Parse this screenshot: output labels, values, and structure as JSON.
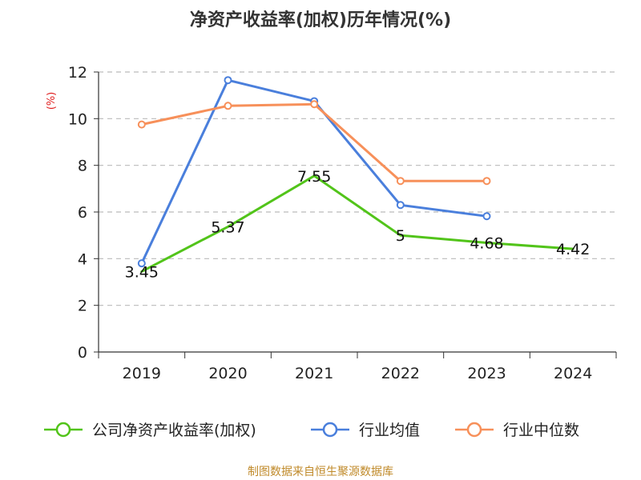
{
  "source_text": "制图数据来自恒生聚源数据库",
  "chart_data": {
    "type": "line",
    "title": "净资产收益率(加权)历年情况(%)",
    "ylabel": "(%)",
    "categories": [
      "2019",
      "2020",
      "2021",
      "2022",
      "2023",
      "2024"
    ],
    "ylim": [
      0,
      12
    ],
    "yticks": [
      0,
      2,
      4,
      6,
      8,
      10,
      12
    ],
    "grid": true,
    "legend_position": "bottom",
    "series": [
      {
        "name": "公司净资产收益率(加权)",
        "color": "#52c41a",
        "values": [
          3.45,
          5.37,
          7.55,
          5,
          4.68,
          4.42
        ],
        "labels": [
          "3.45",
          "5.37",
          "7.55",
          "5",
          "4.68",
          "4.42"
        ],
        "marker": "none"
      },
      {
        "name": "行业均值",
        "color": "#4a7fdc",
        "values": [
          3.8,
          11.65,
          10.75,
          6.3,
          5.82,
          null
        ],
        "marker": "circle"
      },
      {
        "name": "行业中位数",
        "color": "#f7905a",
        "values": [
          9.75,
          10.55,
          10.62,
          7.33,
          7.33,
          null
        ],
        "marker": "circle"
      }
    ]
  }
}
